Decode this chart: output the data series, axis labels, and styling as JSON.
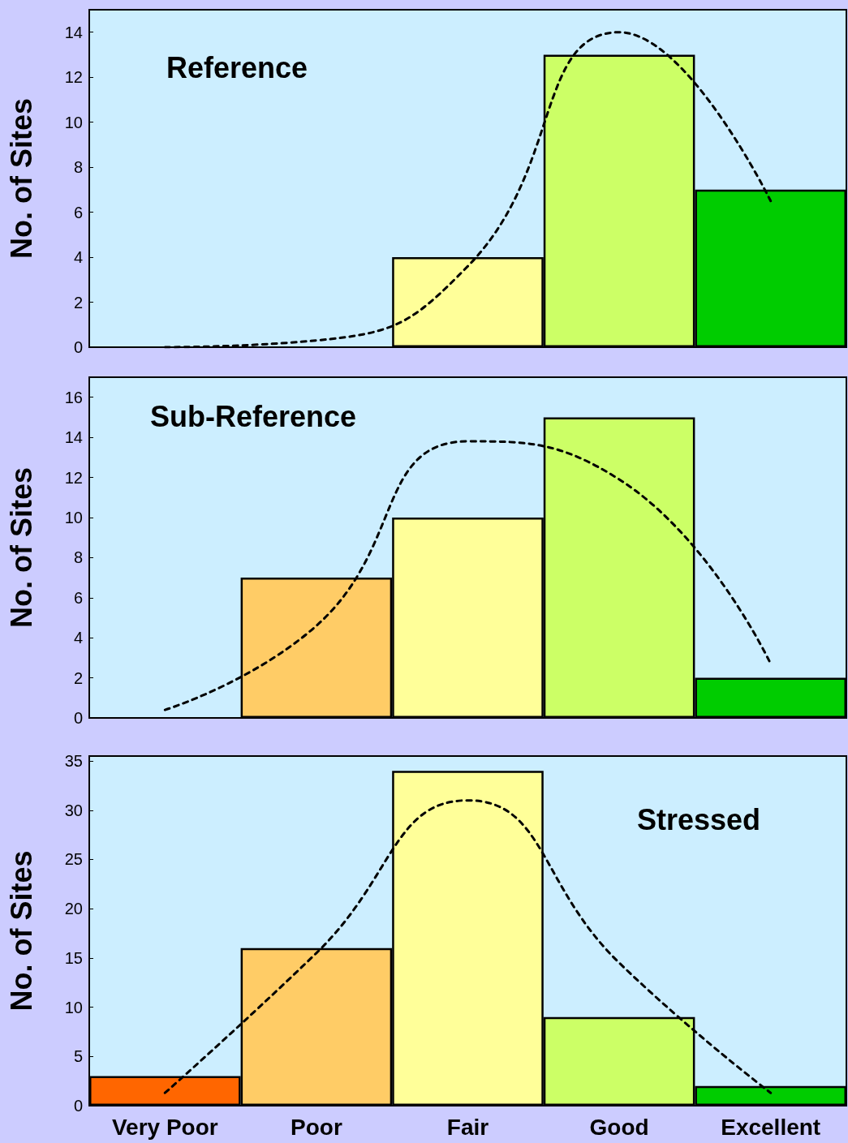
{
  "chart_data": [
    {
      "type": "bar",
      "title": "Reference",
      "ylabel": "No. of Sites",
      "categories": [
        null,
        null,
        null,
        null,
        null
      ],
      "ylim": [
        0,
        15
      ],
      "yticks": [
        0,
        2,
        4,
        6,
        8,
        10,
        12,
        14
      ],
      "grid": false,
      "series": [
        {
          "values": [
            0,
            0,
            4,
            13,
            7
          ],
          "colors": [
            "#ff6600",
            "#ffcc66",
            "#ffff99",
            "#ccff66",
            "#00cc00"
          ]
        },
        {
          "type": "line",
          "color": "#000000",
          "line_style": "dashed",
          "marker": "none",
          "values": [
            0,
            0.3,
            3.6,
            14.0,
            6.5
          ]
        }
      ]
    },
    {
      "type": "bar",
      "title": "Sub-Reference",
      "ylabel": "No. of Sites",
      "categories": [
        null,
        null,
        null,
        null,
        null
      ],
      "ylim": [
        0,
        17
      ],
      "yticks": [
        0,
        2,
        4,
        6,
        8,
        10,
        12,
        14,
        16
      ],
      "grid": false,
      "series": [
        {
          "values": [
            0,
            7,
            10,
            15,
            2
          ],
          "colors": [
            "#ff6600",
            "#ffcc66",
            "#ffff99",
            "#ccff66",
            "#00cc00"
          ]
        },
        {
          "type": "line",
          "color": "#000000",
          "line_style": "dashed",
          "marker": "none",
          "values": [
            0.4,
            4.6,
            13.8,
            11.9,
            2.7
          ]
        }
      ]
    },
    {
      "type": "bar",
      "title": "Stressed",
      "ylabel": "No. of Sites",
      "categories": [
        "Very Poor",
        "Poor",
        "Fair",
        "Good",
        "Excellent"
      ],
      "ylim": [
        0,
        35.5
      ],
      "yticks": [
        0,
        5,
        10,
        15,
        20,
        25,
        30,
        35
      ],
      "grid": false,
      "series": [
        {
          "values": [
            3,
            16,
            34,
            9,
            2
          ],
          "colors": [
            "#ff6600",
            "#ffcc66",
            "#ffff99",
            "#ccff66",
            "#00cc00"
          ]
        },
        {
          "type": "line",
          "color": "#000000",
          "line_style": "dashed",
          "marker": "none",
          "values": [
            1.3,
            15.5,
            31.0,
            14.5,
            1.3
          ]
        }
      ]
    }
  ]
}
